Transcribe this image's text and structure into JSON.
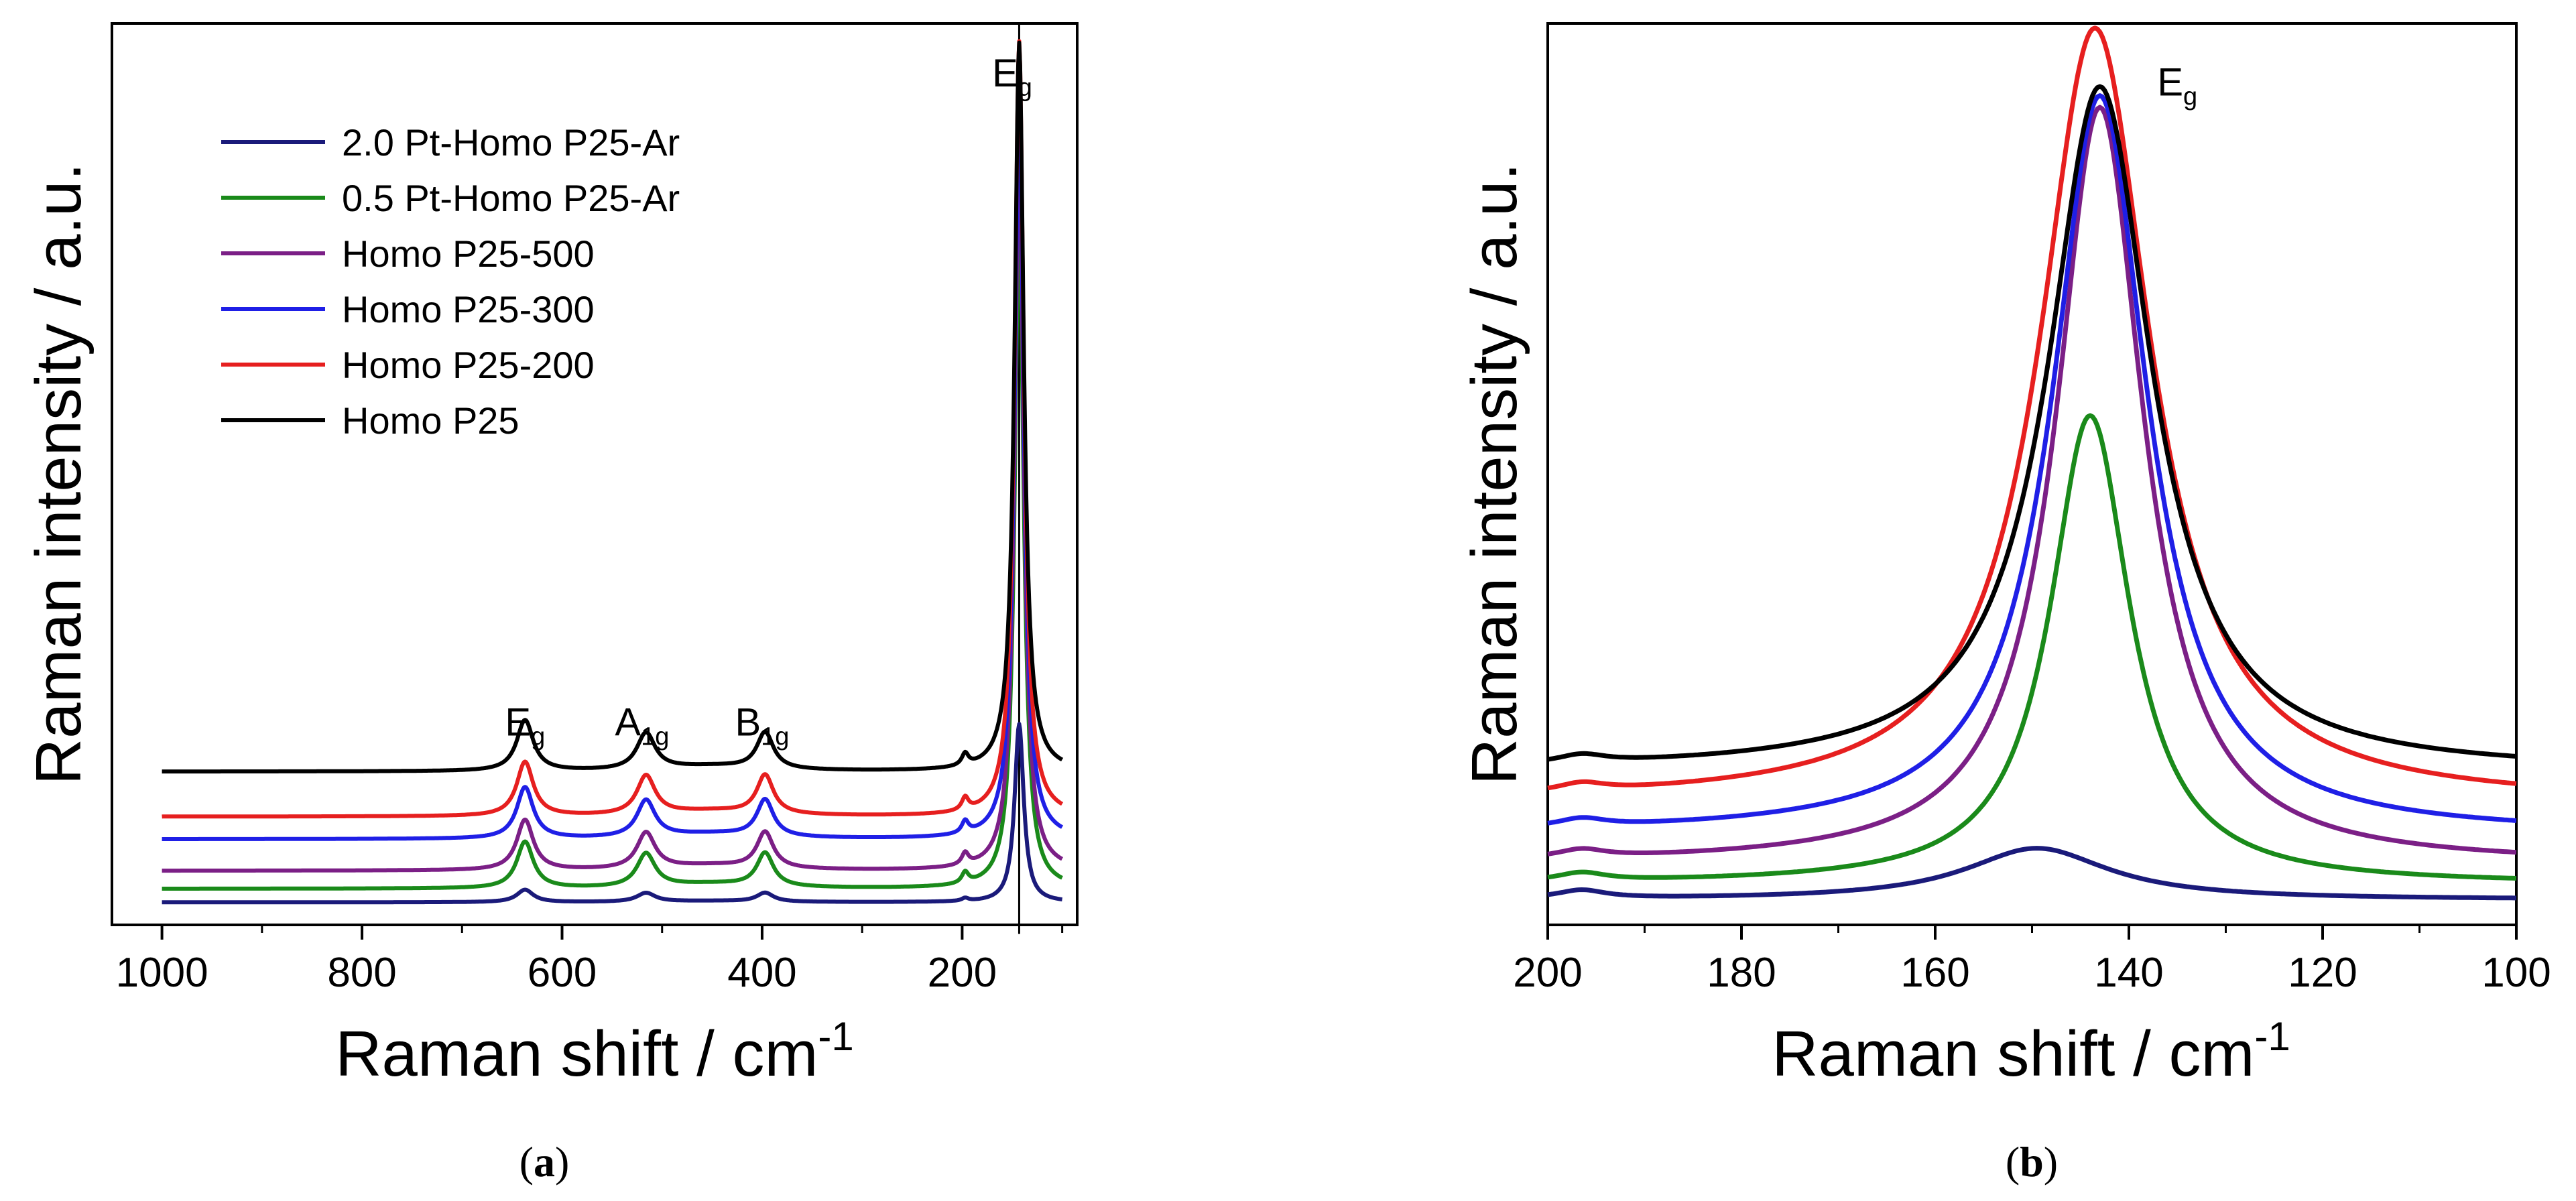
{
  "chart_data": [
    {
      "panel": "a",
      "caption_letter": "a",
      "type": "line",
      "xlabel_main": "Raman shift / cm",
      "xlabel_sup": "-1",
      "ylabel": "Raman intensity / a.u.",
      "xlim": [
        1050,
        85
      ],
      "ylim": [
        0,
        100
      ],
      "xticks": [
        1000,
        800,
        600,
        400,
        200
      ],
      "vline_x": 143,
      "legend": [
        "2.0 Pt-Homo P25-Ar",
        "0.5 Pt-Homo P25-Ar",
        "Homo P25-500",
        "Homo P25-300",
        "Homo P25-200",
        "Homo P25"
      ],
      "series": [
        {
          "name": "2.0 Pt-Homo P25-Ar",
          "color": "#1a1a7a",
          "baseline": 2.5,
          "scale": 0.23
        },
        {
          "name": "0.5 Pt-Homo P25-Ar",
          "color": "#1a8a1a",
          "baseline": 4.0,
          "scale": 0.86
        },
        {
          "name": "Homo P25-500",
          "color": "#7b1f86",
          "baseline": 6.0,
          "scale": 0.93
        },
        {
          "name": "Homo P25-300",
          "color": "#1f1fe6",
          "baseline": 9.5,
          "scale": 0.95
        },
        {
          "name": "Homo P25-200",
          "color": "#e61f1f",
          "baseline": 12.0,
          "scale": 1.0
        },
        {
          "name": "Homo P25",
          "color": "#000000",
          "baseline": 17.0,
          "scale": 0.94
        }
      ],
      "peaks": [
        {
          "name": "Eg",
          "center": 143,
          "width": 5.5,
          "amp": 86
        },
        {
          "name": "B1g",
          "center": 397,
          "width": 10,
          "amp": 4.3
        },
        {
          "name": "A1g",
          "center": 516,
          "width": 11,
          "amp": 4.3
        },
        {
          "name": "Eg",
          "center": 637,
          "width": 10,
          "amp": 6.0
        },
        {
          "name": "Eg(197)",
          "center": 197,
          "width": 4,
          "amp": 1.4
        }
      ],
      "peak_labels": [
        {
          "base": "E",
          "sub": "g",
          "x": 637,
          "y": 21
        },
        {
          "base": "A",
          "sub": "1g",
          "x": 520,
          "y": 21
        },
        {
          "base": "B",
          "sub": "1g",
          "x": 400,
          "y": 21
        },
        {
          "base": "E",
          "sub": "g",
          "x": 150,
          "y": 93
        }
      ]
    },
    {
      "panel": "b",
      "caption_letter": "b",
      "type": "line",
      "xlabel_main": "Raman shift / cm",
      "xlabel_sup": "-1",
      "ylabel": "Raman intensity / a.u.",
      "xlim": [
        200,
        100
      ],
      "ylim": [
        0,
        100
      ],
      "xticks": [
        200,
        180,
        160,
        140,
        120,
        100
      ],
      "legend": [],
      "series": [
        {
          "name": "2.0 Pt-Homo P25-Ar",
          "color": "#1a1a7a",
          "baseline": 2.8,
          "amp": 5.7,
          "center": 149.5,
          "width": 9
        },
        {
          "name": "0.5 Pt-Homo P25-Ar",
          "color": "#1a8a1a",
          "baseline": 4.5,
          "amp": 52,
          "center": 144,
          "width": 5
        },
        {
          "name": "Homo P25-500",
          "color": "#7b1f86",
          "baseline": 6.7,
          "amp": 84,
          "center": 143,
          "width": 5.5
        },
        {
          "name": "Homo P25-300",
          "color": "#1f1fe6",
          "baseline": 10.0,
          "amp": 82,
          "center": 143,
          "width": 6
        },
        {
          "name": "Homo P25-200",
          "color": "#e61f1f",
          "baseline": 13.5,
          "amp": 86,
          "center": 143.5,
          "width": 7
        },
        {
          "name": "Homo P25",
          "color": "#000000",
          "baseline": 17.0,
          "amp": 76,
          "center": 143,
          "width": 6.5
        }
      ],
      "peak_labels": [
        {
          "base": "E",
          "sub": "g",
          "x": 135,
          "y": 92
        }
      ]
    }
  ]
}
